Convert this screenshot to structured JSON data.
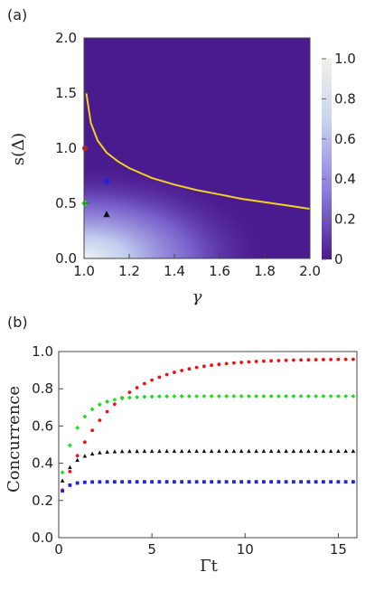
{
  "chart_data": [
    {
      "panel_label": "(a)",
      "type": "heatmap",
      "xlabel": "γ",
      "ylabel": "s(Δ)",
      "xlim": [
        1.0,
        2.0
      ],
      "ylim": [
        0.0,
        2.0
      ],
      "x_ticks": [
        "1.0",
        "1.2",
        "1.4",
        "1.6",
        "1.8",
        "2.0"
      ],
      "y_ticks": [
        "0.0",
        "0.5",
        "1.0",
        "1.5",
        "2.0"
      ],
      "colorbar": {
        "range": [
          0,
          1
        ],
        "ticks": [
          "0",
          "0.2",
          "0.4",
          "0.6",
          "0.8",
          "1.0"
        ],
        "colors": [
          "#4a1a8f",
          "#8d7fe2",
          "#c9d6ef",
          "#f2f0e8"
        ]
      },
      "boundary_curve": {
        "color": "#f2d21f",
        "points": [
          [
            1.01,
            1.5
          ],
          [
            1.03,
            1.23
          ],
          [
            1.06,
            1.07
          ],
          [
            1.1,
            0.96
          ],
          [
            1.15,
            0.88
          ],
          [
            1.2,
            0.82
          ],
          [
            1.3,
            0.73
          ],
          [
            1.4,
            0.67
          ],
          [
            1.5,
            0.62
          ],
          [
            1.6,
            0.58
          ],
          [
            1.7,
            0.54
          ],
          [
            1.8,
            0.51
          ],
          [
            1.9,
            0.48
          ],
          [
            2.0,
            0.45
          ]
        ]
      },
      "markers": [
        {
          "shape": "circle",
          "color": "#ee1111",
          "x": 1.0,
          "y": 1.0
        },
        {
          "shape": "square",
          "color": "#2222dd",
          "x": 1.1,
          "y": 0.7
        },
        {
          "shape": "diamond",
          "color": "#22dd22",
          "x": 1.0,
          "y": 0.5
        },
        {
          "shape": "triangle",
          "color": "#111111",
          "x": 1.1,
          "y": 0.4
        }
      ]
    },
    {
      "panel_label": "(b)",
      "type": "scatter",
      "xlabel": "Γt",
      "ylabel": "Concurrence",
      "xlim": [
        0,
        16
      ],
      "ylim": [
        0.0,
        1.0
      ],
      "x_ticks": [
        "0",
        "5",
        "10",
        "15"
      ],
      "y_ticks": [
        "0.0",
        "0.2",
        "0.4",
        "0.6",
        "0.8",
        "1.0"
      ],
      "series": [
        {
          "color": "#ee1111",
          "shape": "circle",
          "y0": 0.2,
          "plateau": 0.96,
          "rate": 0.38
        },
        {
          "color": "#22dd22",
          "shape": "diamond",
          "y0": 0.25,
          "plateau": 0.76,
          "rate": 1.1
        },
        {
          "color": "#111111",
          "shape": "triangle",
          "y0": 0.25,
          "plateau": 0.465,
          "rate": 1.5
        },
        {
          "color": "#2222dd",
          "shape": "square",
          "y0": 0.22,
          "plateau": 0.3,
          "rate": 2.5
        }
      ]
    }
  ]
}
